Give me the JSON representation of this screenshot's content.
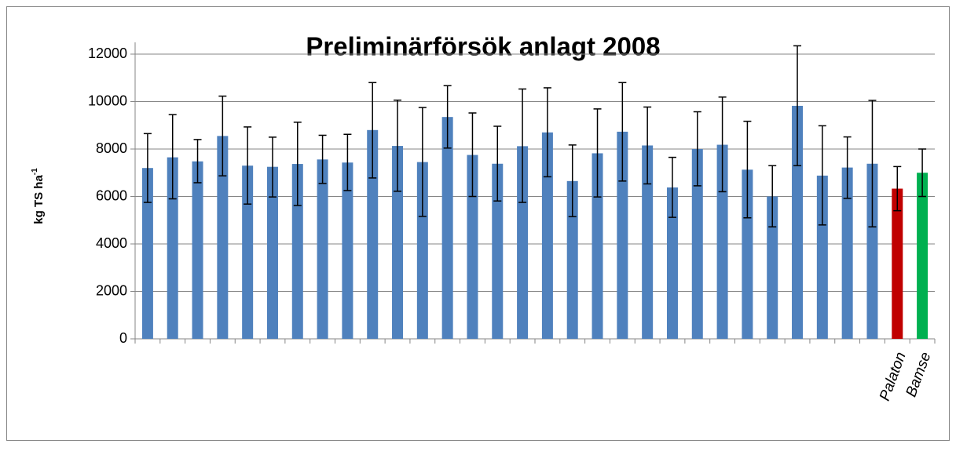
{
  "chart_data": {
    "type": "bar",
    "title": "Preliminärförsök anlagt 2008",
    "ylabel": "kg TS ha",
    "ylabel_superscript": "-1",
    "categories": [
      null,
      null,
      null,
      null,
      null,
      null,
      null,
      null,
      null,
      null,
      null,
      null,
      null,
      null,
      null,
      null,
      null,
      null,
      null,
      null,
      null,
      null,
      null,
      null,
      null,
      null,
      null,
      null,
      null,
      null,
      "Palaton",
      "Bamse"
    ],
    "values": [
      7200,
      7650,
      7480,
      8550,
      7300,
      7250,
      7370,
      7560,
      7430,
      8800,
      8130,
      7450,
      9350,
      7750,
      7380,
      8120,
      8700,
      6650,
      7820,
      8730,
      8150,
      6380,
      8000,
      8180,
      7130,
      6000,
      9820,
      6880,
      7220,
      7380,
      6330,
      7000
    ],
    "error_minus": [
      1450,
      1750,
      900,
      1680,
      1620,
      1270,
      1750,
      1010,
      1180,
      2020,
      1910,
      2290,
      1310,
      1750,
      1570,
      2370,
      1870,
      1500,
      1840,
      2080,
      1620,
      1260,
      1550,
      1980,
      2030,
      1280,
      2520,
      2080,
      1300,
      2660,
      930,
      1000
    ],
    "error_plus": [
      1450,
      1800,
      920,
      1680,
      1630,
      1250,
      1760,
      1020,
      1190,
      2000,
      1930,
      2300,
      1320,
      1770,
      1580,
      2410,
      1880,
      1520,
      1870,
      2070,
      1620,
      1270,
      1570,
      2010,
      2040,
      1300,
      2530,
      2100,
      1290,
      2670,
      930,
      1000
    ],
    "colors": [
      "#4f81bd",
      "#4f81bd",
      "#4f81bd",
      "#4f81bd",
      "#4f81bd",
      "#4f81bd",
      "#4f81bd",
      "#4f81bd",
      "#4f81bd",
      "#4f81bd",
      "#4f81bd",
      "#4f81bd",
      "#4f81bd",
      "#4f81bd",
      "#4f81bd",
      "#4f81bd",
      "#4f81bd",
      "#4f81bd",
      "#4f81bd",
      "#4f81bd",
      "#4f81bd",
      "#4f81bd",
      "#4f81bd",
      "#4f81bd",
      "#4f81bd",
      "#4f81bd",
      "#4f81bd",
      "#4f81bd",
      "#4f81bd",
      "#4f81bd",
      "#c00000",
      "#00b050"
    ],
    "ylim": [
      0,
      12000
    ],
    "yticks": [
      0,
      2000,
      4000,
      6000,
      8000,
      10000,
      12000
    ],
    "grid": true
  }
}
